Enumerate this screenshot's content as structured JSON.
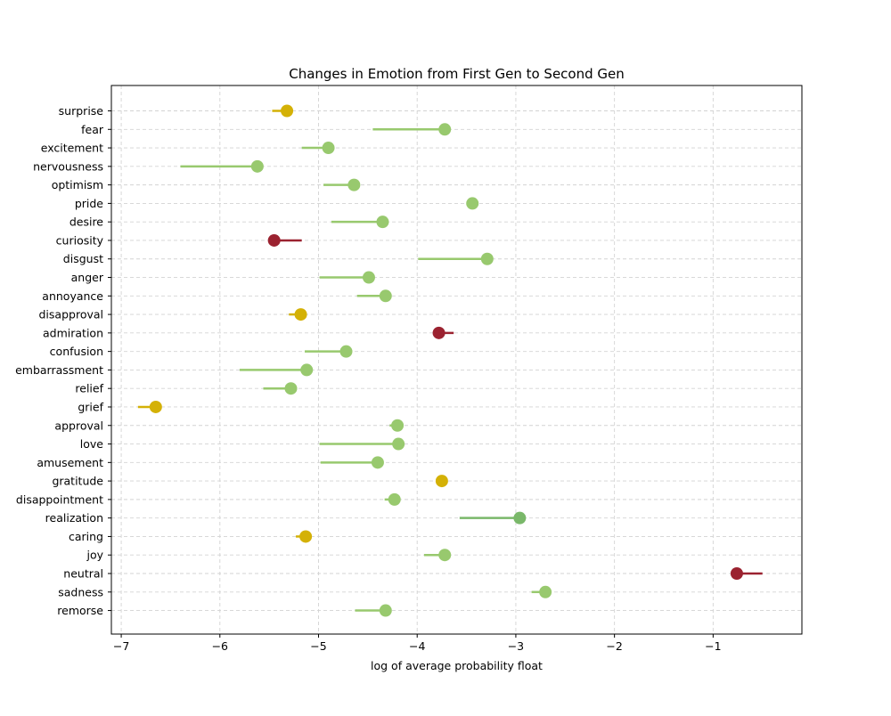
{
  "chart_data": {
    "type": "dumbbell",
    "title": "Changes in Emotion from First Gen to Second Gen",
    "xlabel": "log of average probability float",
    "ylabel": "",
    "xlim": [
      -7.1,
      -0.1
    ],
    "xticks": [
      -7,
      -6,
      -5,
      -4,
      -3,
      -2,
      -1
    ],
    "xtick_labels": [
      "−7",
      "−6",
      "−5",
      "−4",
      "−3",
      "−2",
      "−1"
    ],
    "grid": true,
    "colors": {
      "increase": "#98c96e",
      "increase_dark": "#7ab86a",
      "decrease": "#9b2230",
      "small_change": "#d4b106"
    },
    "categories": [
      "surprise",
      "fear",
      "excitement",
      "nervousness",
      "optimism",
      "pride",
      "desire",
      "curiosity",
      "disgust",
      "anger",
      "annoyance",
      "disapproval",
      "admiration",
      "confusion",
      "embarrassment",
      "relief",
      "grief",
      "approval",
      "love",
      "amusement",
      "gratitude",
      "disappointment",
      "realization",
      "caring",
      "joy",
      "neutral",
      "sadness",
      "remorse"
    ],
    "series": [
      {
        "name": "",
        "values": [
          -5.47,
          -4.45,
          -5.17,
          -6.4,
          -4.95,
          -3.44,
          -4.87,
          -5.17,
          -3.99,
          -4.99,
          -4.61,
          -5.3,
          -3.63,
          -5.14,
          -5.8,
          -5.56,
          -6.83,
          -4.28,
          -4.99,
          -4.98,
          -3.75,
          -4.33,
          -3.57,
          -5.23,
          -3.93,
          -0.5,
          -2.84,
          -4.63
        ]
      },
      {
        "name": "",
        "values": [
          -5.32,
          -3.72,
          -4.9,
          -5.62,
          -4.64,
          -3.44,
          -4.35,
          -5.45,
          -3.29,
          -4.49,
          -4.32,
          -5.18,
          -3.78,
          -4.72,
          -5.12,
          -5.28,
          -6.65,
          -4.2,
          -4.19,
          -4.4,
          -3.75,
          -4.23,
          -2.96,
          -5.13,
          -3.72,
          -0.76,
          -2.7,
          -4.32
        ]
      }
    ],
    "marker_color": [
      "small_change",
      "increase",
      "increase",
      "increase",
      "increase",
      "increase",
      "increase",
      "decrease",
      "increase",
      "increase",
      "increase",
      "small_change",
      "decrease",
      "increase",
      "increase",
      "increase",
      "small_change",
      "increase",
      "increase",
      "increase",
      "small_change",
      "increase",
      "increase_dark",
      "small_change",
      "increase",
      "decrease",
      "increase",
      "increase"
    ]
  }
}
